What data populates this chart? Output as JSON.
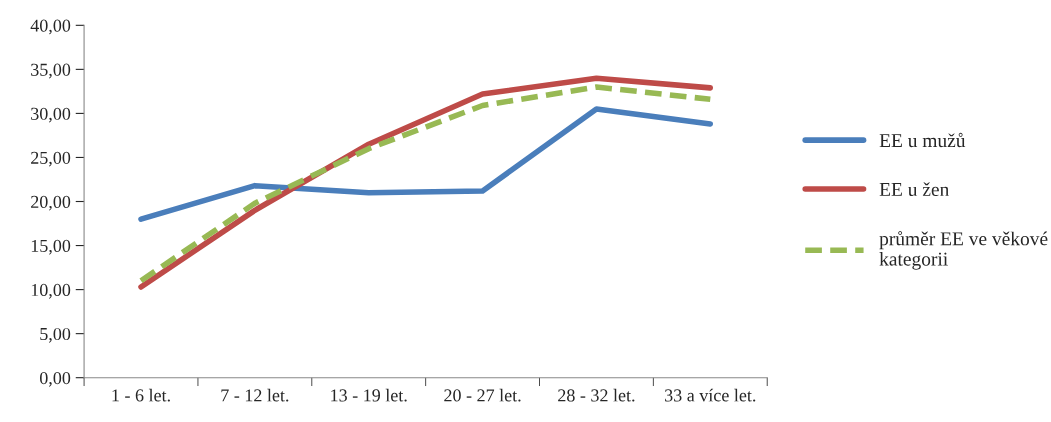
{
  "chart_data": {
    "type": "line",
    "categories": [
      "1 - 6 let.",
      "7 - 12 let.",
      "13 - 19 let.",
      "20 - 27 let.",
      "28 - 32 let.",
      "33 a více let."
    ],
    "series": [
      {
        "name": "EE u mužů",
        "color": "#4a7ebb",
        "values": [
          18.0,
          21.8,
          21.0,
          21.2,
          30.5,
          28.8
        ]
      },
      {
        "name": "EE u žen",
        "color": "#be4b48",
        "values": [
          10.3,
          19.0,
          26.5,
          32.2,
          34.0,
          32.9
        ]
      },
      {
        "name": "průměr EE ve věkové\nkategorii",
        "color": "#98b954",
        "line_style": "dashed",
        "values": [
          11.0,
          19.8,
          26.0,
          30.9,
          33.0,
          31.6
        ]
      }
    ],
    "ylim": [
      0,
      40
    ],
    "yticks": [
      {
        "value": 0,
        "label": "0,00"
      },
      {
        "value": 5,
        "label": "5,00"
      },
      {
        "value": 10,
        "label": "10,00"
      },
      {
        "value": 15,
        "label": "15,00"
      },
      {
        "value": 20,
        "label": "20,00"
      },
      {
        "value": 25,
        "label": "25,00"
      },
      {
        "value": 30,
        "label": "30,00"
      },
      {
        "value": 35,
        "label": "35,00"
      },
      {
        "value": 40,
        "label": "40,00"
      }
    ],
    "grid": false,
    "legend": "right",
    "marker": "none"
  }
}
